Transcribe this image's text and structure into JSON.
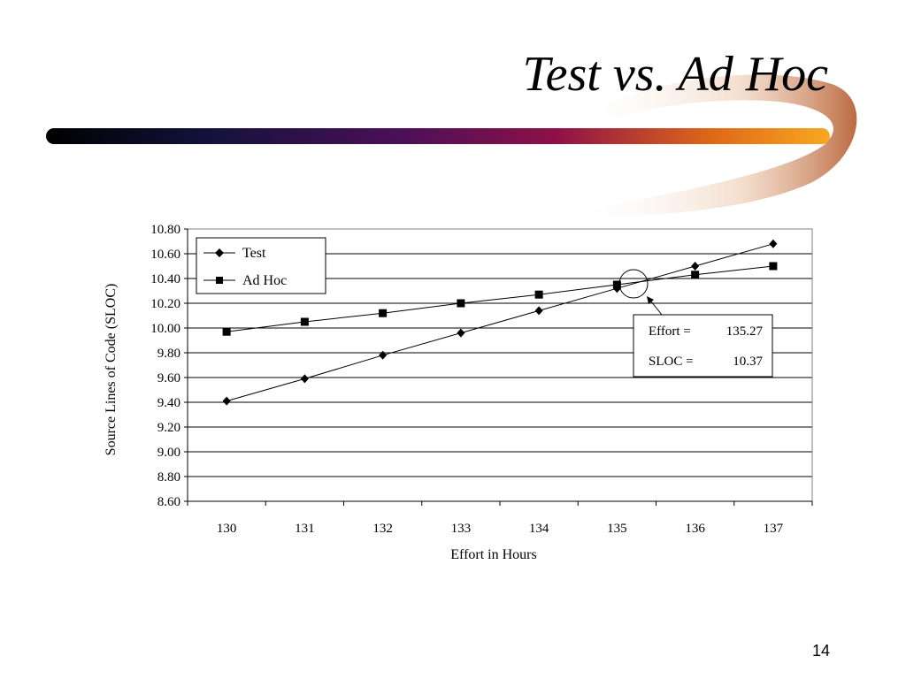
{
  "slide": {
    "title": "Test vs. Ad Hoc",
    "page_number": "14"
  },
  "colors": {
    "band_gradient": [
      "#000000",
      "#1a1a4a",
      "#5a1060",
      "#9a1040",
      "#e06010",
      "#f8a010"
    ],
    "swoosh": "#c87040",
    "lines": "#000000"
  },
  "chart_data": {
    "type": "line",
    "x": [
      130,
      131,
      132,
      133,
      134,
      135,
      136,
      137
    ],
    "series": [
      {
        "name": "Test",
        "marker": "diamond",
        "values": [
          9.41,
          9.59,
          9.78,
          9.96,
          10.14,
          10.32,
          10.5,
          10.68
        ]
      },
      {
        "name": "Ad Hoc",
        "marker": "square",
        "values": [
          9.97,
          10.05,
          10.12,
          10.2,
          10.27,
          10.35,
          10.43,
          10.5
        ]
      }
    ],
    "xlabel": "Effort in Hours",
    "ylabel": "Source Lines of Code (SLOC)",
    "ylim": [
      8.6,
      10.8
    ],
    "yticks": [
      "10.80",
      "10.60",
      "10.40",
      "10.20",
      "10.00",
      "9.80",
      "9.60",
      "9.40",
      "9.20",
      "9.00",
      "8.80",
      "8.60"
    ],
    "xticks": [
      "130",
      "131",
      "132",
      "133",
      "134",
      "135",
      "136",
      "137"
    ],
    "grid": "horizontal",
    "legend_position": "top-left",
    "intersection": {
      "x": 135.27,
      "y": 10.37
    },
    "annotation": {
      "effort_label": "Effort =",
      "effort_value": "135.27",
      "sloc_label": "SLOC =",
      "sloc_value": "10.37"
    }
  }
}
